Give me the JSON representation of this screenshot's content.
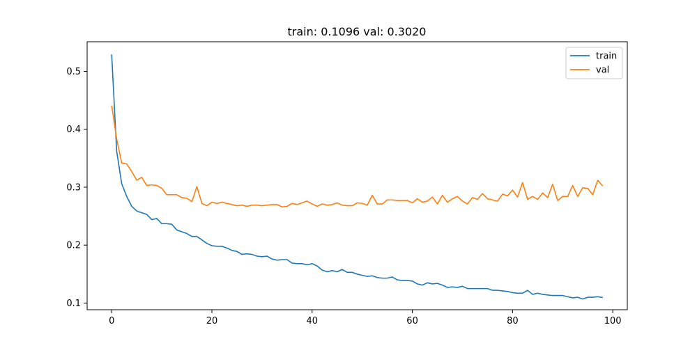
{
  "chart_data": {
    "type": "line",
    "title": "train: 0.1096 val: 0.3020",
    "xlabel": "",
    "ylabel": "",
    "xlim": [
      -4.9,
      102.9
    ],
    "ylim": [
      0.0885,
      0.551
    ],
    "xticks": [
      0,
      20,
      40,
      60,
      80,
      100
    ],
    "yticks": [
      0.1,
      0.2,
      0.3,
      0.4,
      0.5
    ],
    "xtick_labels": [
      "0",
      "20",
      "40",
      "60",
      "80",
      "100"
    ],
    "ytick_labels": [
      "0.1",
      "0.2",
      "0.3",
      "0.4",
      "0.5"
    ],
    "grid": false,
    "legend_position": "top-right",
    "series": [
      {
        "name": "train",
        "color": "#1f77b4",
        "values": [
          0.529,
          0.362,
          0.306,
          0.284,
          0.267,
          0.259,
          0.256,
          0.253,
          0.244,
          0.246,
          0.237,
          0.237,
          0.236,
          0.226,
          0.223,
          0.22,
          0.215,
          0.215,
          0.209,
          0.203,
          0.199,
          0.198,
          0.198,
          0.195,
          0.191,
          0.189,
          0.184,
          0.185,
          0.184,
          0.181,
          0.18,
          0.181,
          0.176,
          0.174,
          0.175,
          0.175,
          0.169,
          0.168,
          0.168,
          0.166,
          0.168,
          0.164,
          0.157,
          0.154,
          0.156,
          0.154,
          0.158,
          0.153,
          0.153,
          0.15,
          0.148,
          0.146,
          0.147,
          0.144,
          0.143,
          0.143,
          0.145,
          0.14,
          0.139,
          0.139,
          0.138,
          0.133,
          0.131,
          0.135,
          0.133,
          0.134,
          0.131,
          0.127,
          0.128,
          0.127,
          0.129,
          0.125,
          0.125,
          0.125,
          0.125,
          0.125,
          0.122,
          0.122,
          0.121,
          0.12,
          0.118,
          0.117,
          0.117,
          0.122,
          0.115,
          0.117,
          0.115,
          0.114,
          0.113,
          0.113,
          0.113,
          0.111,
          0.109,
          0.11,
          0.107,
          0.11,
          0.11,
          0.111,
          0.1096
        ]
      },
      {
        "name": "val",
        "color": "#ff7f0e",
        "values": [
          0.441,
          0.383,
          0.342,
          0.34,
          0.327,
          0.312,
          0.317,
          0.303,
          0.304,
          0.303,
          0.298,
          0.287,
          0.287,
          0.287,
          0.282,
          0.281,
          0.275,
          0.301,
          0.272,
          0.268,
          0.274,
          0.272,
          0.274,
          0.272,
          0.27,
          0.268,
          0.269,
          0.267,
          0.269,
          0.269,
          0.268,
          0.269,
          0.27,
          0.27,
          0.266,
          0.267,
          0.272,
          0.27,
          0.273,
          0.276,
          0.271,
          0.267,
          0.271,
          0.269,
          0.27,
          0.273,
          0.269,
          0.268,
          0.268,
          0.273,
          0.272,
          0.269,
          0.286,
          0.271,
          0.271,
          0.278,
          0.278,
          0.277,
          0.277,
          0.277,
          0.273,
          0.28,
          0.274,
          0.276,
          0.283,
          0.271,
          0.286,
          0.274,
          0.28,
          0.284,
          0.276,
          0.271,
          0.282,
          0.279,
          0.289,
          0.28,
          0.278,
          0.276,
          0.288,
          0.285,
          0.295,
          0.283,
          0.308,
          0.279,
          0.284,
          0.279,
          0.29,
          0.282,
          0.305,
          0.277,
          0.284,
          0.284,
          0.303,
          0.284,
          0.299,
          0.298,
          0.287,
          0.312,
          0.302
        ]
      }
    ]
  }
}
